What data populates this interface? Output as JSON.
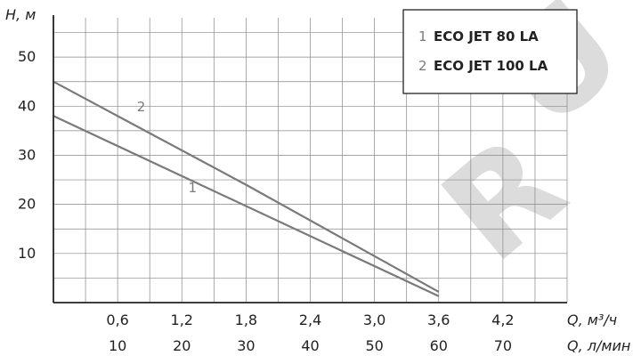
{
  "chart_data": {
    "type": "line",
    "ylabel": "H, м",
    "xlabel": "Q, м³/ч",
    "xlabel2": "Q, л/мин",
    "x_ticks": [
      "0,6",
      "1,2",
      "1,8",
      "2,4",
      "3,0",
      "3,6",
      "4,2"
    ],
    "x_ticks2": [
      "10",
      "20",
      "30",
      "40",
      "50",
      "60",
      "70"
    ],
    "y_ticks": [
      "10",
      "20",
      "30",
      "40",
      "50"
    ],
    "xlim": [
      0,
      4.8
    ],
    "ylim": [
      0,
      58
    ],
    "grid": true,
    "legend_position": "top-right",
    "series": [
      {
        "id": "1",
        "name": "ECO JET 80 LA",
        "x": [
          0,
          3.6
        ],
        "y": [
          38,
          1.3
        ],
        "color": "#7a7a7a"
      },
      {
        "id": "2",
        "name": "ECO JET 100 LA",
        "x": [
          0,
          1.8,
          3.6
        ],
        "y": [
          45,
          24,
          2.2
        ],
        "color": "#7a7a7a"
      }
    ],
    "legend": [
      {
        "num": "1",
        "name": "ECO JET 80 LA"
      },
      {
        "num": "2",
        "name": "ECO JET 100 LA"
      }
    ],
    "series_labels": [
      {
        "num": "1",
        "x": 1.3,
        "y": 22.5
      },
      {
        "num": "2",
        "x": 0.82,
        "y": 39
      }
    ]
  },
  "watermark": "R U"
}
